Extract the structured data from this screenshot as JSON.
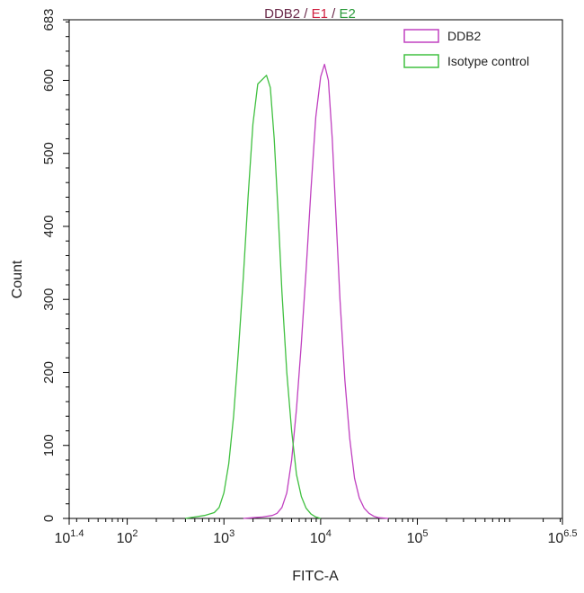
{
  "chart_data": {
    "type": "line",
    "title_parts": [
      {
        "text": "DDB2",
        "color": "#6a2a4a"
      },
      {
        "text": " / ",
        "color": "#6a2a4a"
      },
      {
        "text": "E1",
        "color": "#d02040"
      },
      {
        "text": " / ",
        "color": "#6a2a4a"
      },
      {
        "text": "E2",
        "color": "#2a9a3a"
      }
    ],
    "xlabel": "FITC-A",
    "ylabel": "Count",
    "x_scale": "log",
    "xlim_log10": [
      1.4,
      6.5
    ],
    "ylim": [
      0,
      683
    ],
    "x_ticks": [
      {
        "exp": 1.4,
        "base": "10",
        "sup": "1.4"
      },
      {
        "exp": 2,
        "base": "10",
        "sup": "2"
      },
      {
        "exp": 3,
        "base": "10",
        "sup": "3"
      },
      {
        "exp": 4,
        "base": "10",
        "sup": "4"
      },
      {
        "exp": 5,
        "base": "10",
        "sup": "5"
      },
      {
        "exp": 6.5,
        "base": "10",
        "sup": "6.5"
      }
    ],
    "y_ticks": [
      0,
      100,
      200,
      300,
      400,
      500,
      600,
      683
    ],
    "grid": false,
    "legend_position": "top-right",
    "series": [
      {
        "name": "DDB2",
        "color": "#c040c0",
        "points_log10x": [
          [
            3.2,
            0
          ],
          [
            3.3,
            1
          ],
          [
            3.4,
            2
          ],
          [
            3.5,
            4
          ],
          [
            3.55,
            7
          ],
          [
            3.6,
            15
          ],
          [
            3.65,
            35
          ],
          [
            3.7,
            80
          ],
          [
            3.75,
            150
          ],
          [
            3.8,
            240
          ],
          [
            3.85,
            340
          ],
          [
            3.9,
            450
          ],
          [
            3.95,
            550
          ],
          [
            4.0,
            605
          ],
          [
            4.04,
            622
          ],
          [
            4.08,
            600
          ],
          [
            4.12,
            520
          ],
          [
            4.16,
            410
          ],
          [
            4.2,
            300
          ],
          [
            4.25,
            190
          ],
          [
            4.3,
            110
          ],
          [
            4.35,
            55
          ],
          [
            4.4,
            28
          ],
          [
            4.45,
            14
          ],
          [
            4.5,
            7
          ],
          [
            4.55,
            3
          ],
          [
            4.6,
            1
          ],
          [
            4.7,
            0
          ]
        ]
      },
      {
        "name": "Isotype control",
        "color": "#40c040",
        "points_log10x": [
          [
            2.6,
            0
          ],
          [
            2.7,
            2
          ],
          [
            2.8,
            4
          ],
          [
            2.9,
            8
          ],
          [
            2.95,
            15
          ],
          [
            3.0,
            35
          ],
          [
            3.05,
            75
          ],
          [
            3.1,
            140
          ],
          [
            3.15,
            230
          ],
          [
            3.2,
            330
          ],
          [
            3.25,
            440
          ],
          [
            3.3,
            540
          ],
          [
            3.35,
            595
          ],
          [
            3.44,
            607
          ],
          [
            3.48,
            590
          ],
          [
            3.52,
            520
          ],
          [
            3.56,
            420
          ],
          [
            3.6,
            310
          ],
          [
            3.65,
            200
          ],
          [
            3.7,
            120
          ],
          [
            3.75,
            60
          ],
          [
            3.8,
            30
          ],
          [
            3.85,
            14
          ],
          [
            3.9,
            6
          ],
          [
            3.95,
            2
          ],
          [
            4.0,
            0
          ]
        ]
      }
    ]
  }
}
